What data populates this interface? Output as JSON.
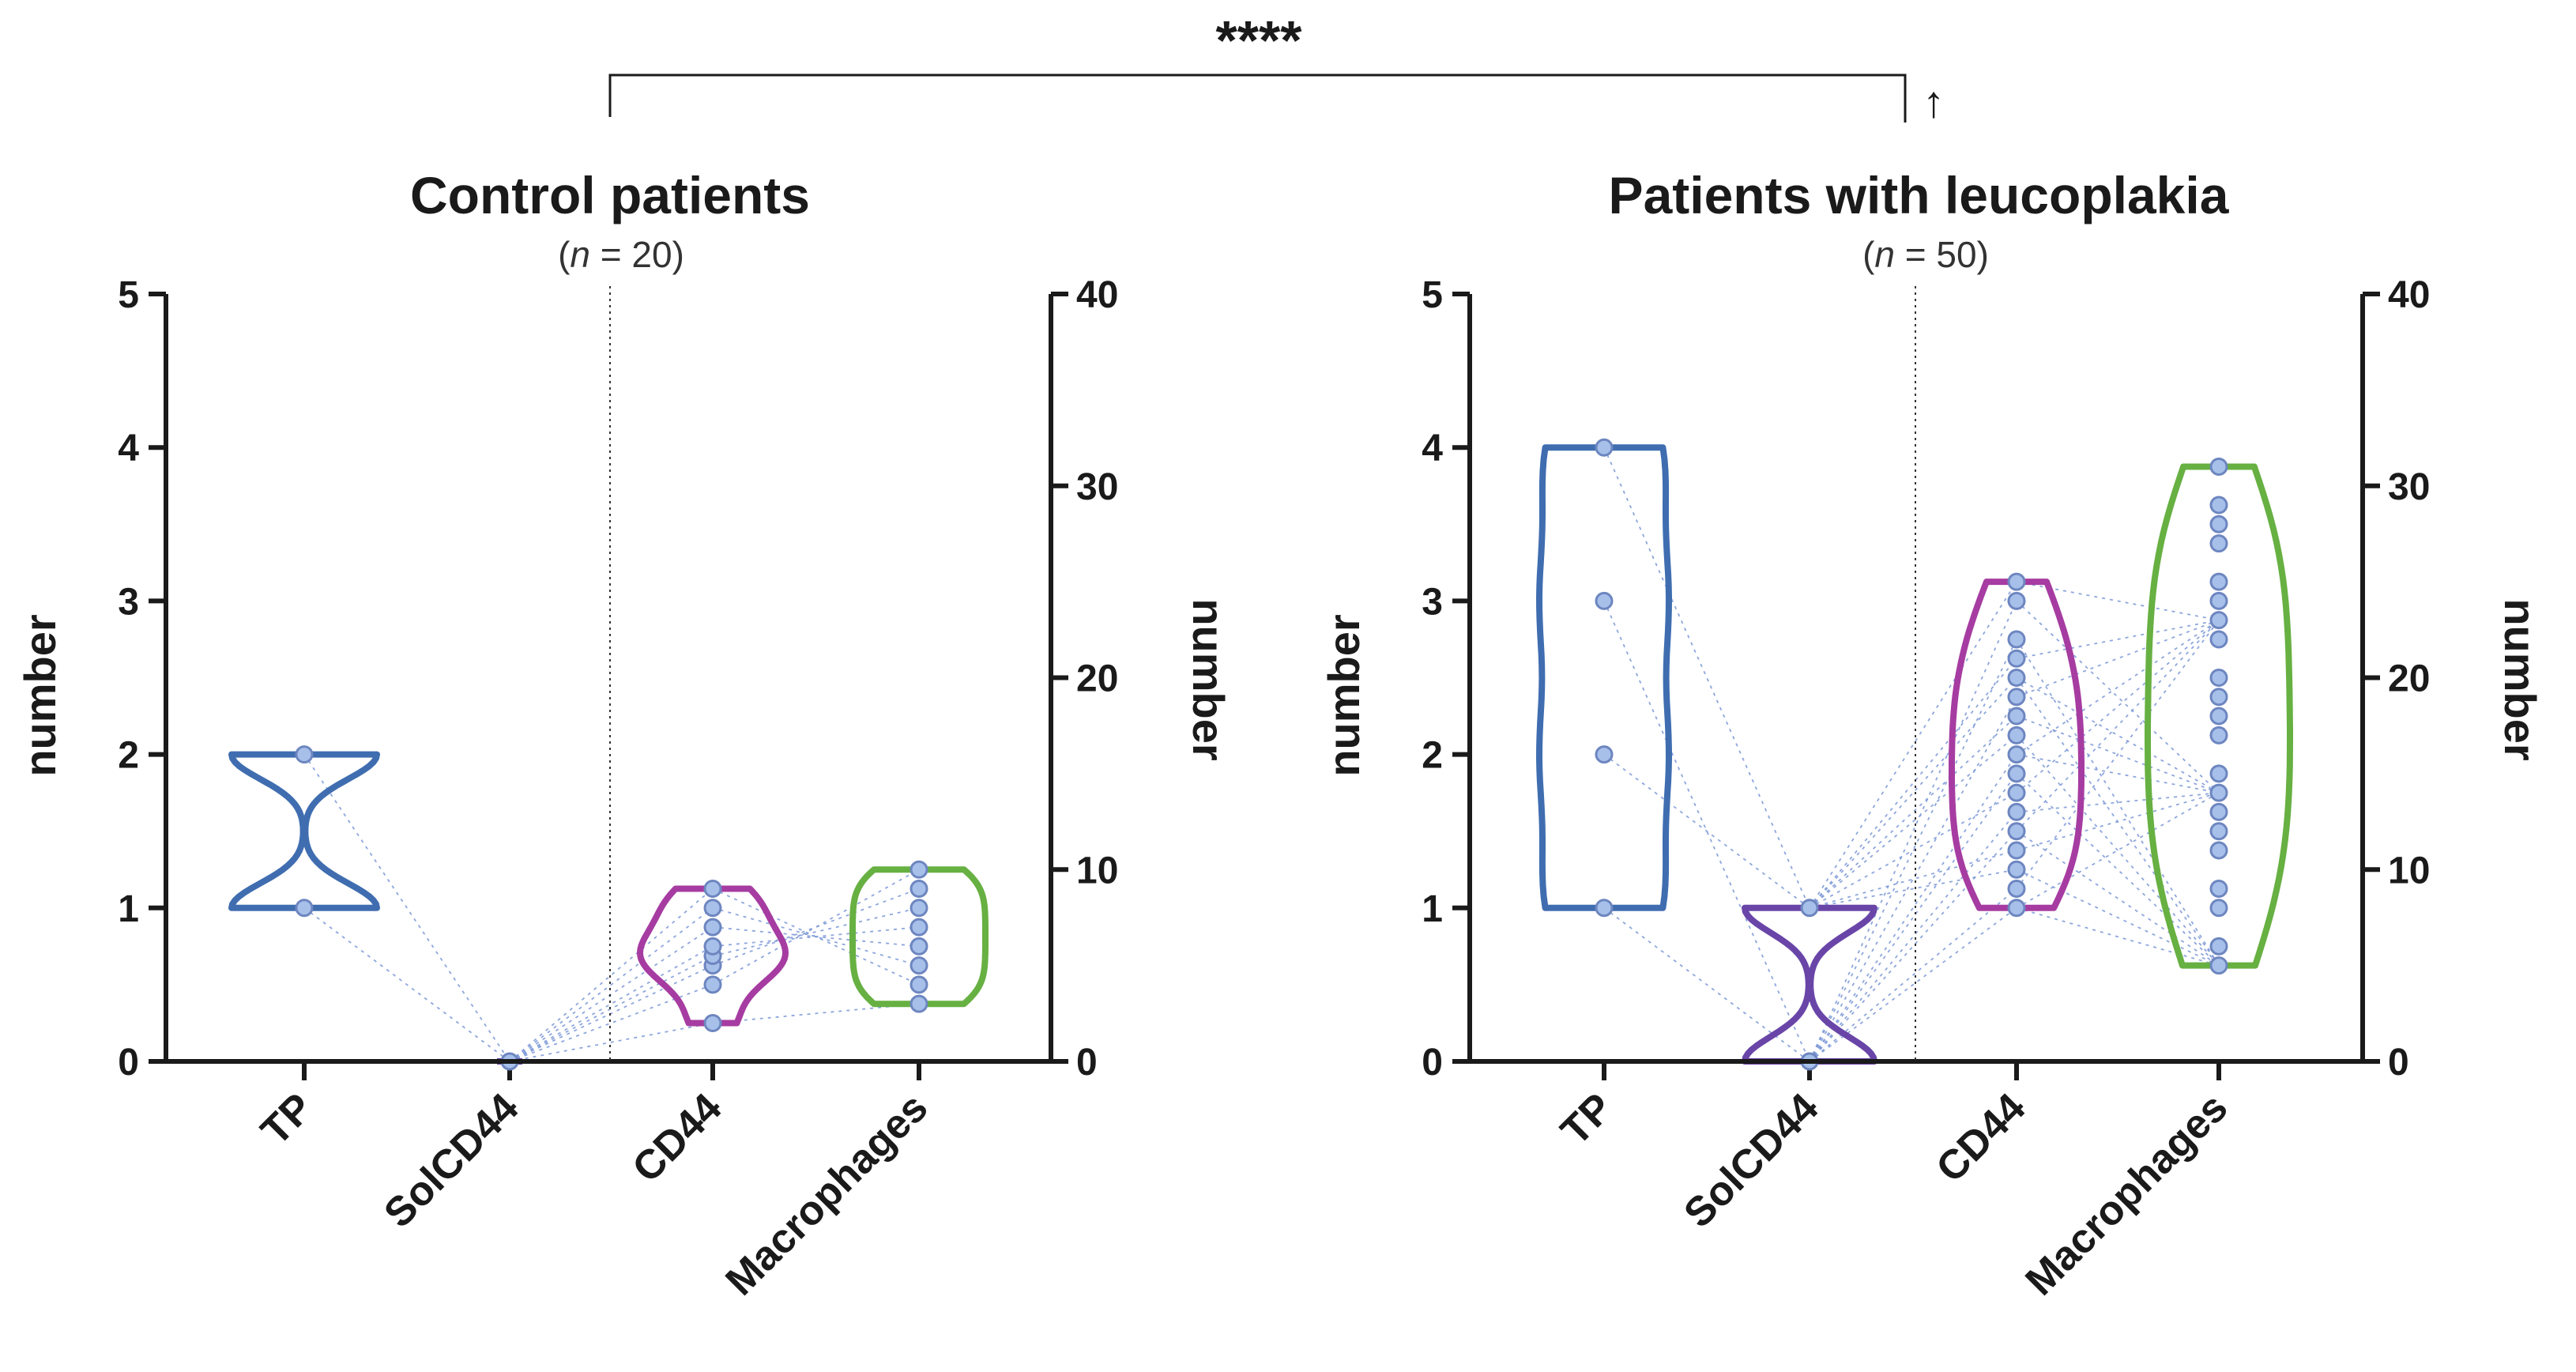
{
  "significance": {
    "stars": "****",
    "arrow": "↑"
  },
  "colors": {
    "TP": "#3f6db0",
    "SolCD44": "#6a45a8",
    "CD44": "#a63ca1",
    "Macrophages": "#67b042",
    "dot_fill": "#a7c0ea",
    "connector": "#7a96d6"
  },
  "chart_data": [
    {
      "type": "violin",
      "title": "Control patients",
      "subtitle_prefix": "(",
      "subtitle_n": "n",
      "subtitle_suffix": " = 20)",
      "categories": [
        "TP",
        "SolCD44",
        "CD44",
        "Macrophages"
      ],
      "left_axis": {
        "label": "number",
        "ylim": [
          0,
          5
        ],
        "ticks": [
          "0",
          "1",
          "2",
          "3",
          "4",
          "5"
        ],
        "applies_to": [
          "TP",
          "SolCD44"
        ]
      },
      "right_axis": {
        "label": "number",
        "ylim": [
          0,
          40
        ],
        "ticks": [
          "0",
          "10",
          "20",
          "30",
          "40"
        ],
        "applies_to": [
          "CD44",
          "Macrophages"
        ]
      },
      "series": [
        {
          "name": "TP",
          "axis": "left",
          "values": [
            1,
            2
          ],
          "min": 1,
          "max": 2
        },
        {
          "name": "SolCD44",
          "axis": "left",
          "values": [
            0
          ],
          "min": 0,
          "max": 0
        },
        {
          "name": "CD44",
          "axis": "right",
          "values": [
            2,
            4,
            5,
            5.5,
            6,
            7,
            8,
            9
          ],
          "min": 2,
          "max": 9
        },
        {
          "name": "Macrophages",
          "axis": "right",
          "values": [
            3,
            4,
            5,
            6,
            7,
            8,
            9,
            10
          ],
          "min": 3,
          "max": 10
        }
      ]
    },
    {
      "type": "violin",
      "title": "Patients with leucoplakia",
      "subtitle_prefix": "(",
      "subtitle_n": "n",
      "subtitle_suffix": " = 50)",
      "categories": [
        "TP",
        "SolCD44",
        "CD44",
        "Macrophages"
      ],
      "left_axis": {
        "label": "number",
        "ylim": [
          0,
          5
        ],
        "ticks": [
          "0",
          "1",
          "2",
          "3",
          "4",
          "5"
        ],
        "applies_to": [
          "TP",
          "SolCD44"
        ]
      },
      "right_axis": {
        "label": "number",
        "ylim": [
          0,
          40
        ],
        "ticks": [
          "0",
          "10",
          "20",
          "30",
          "40"
        ],
        "applies_to": [
          "CD44",
          "Macrophages"
        ]
      },
      "series": [
        {
          "name": "TP",
          "axis": "left",
          "values": [
            1,
            2,
            3,
            4
          ],
          "min": 1,
          "max": 4
        },
        {
          "name": "SolCD44",
          "axis": "left",
          "values": [
            0,
            1
          ],
          "min": 0,
          "max": 1
        },
        {
          "name": "CD44",
          "axis": "right",
          "values": [
            8,
            9,
            10,
            11,
            12,
            13,
            14,
            15,
            16,
            17,
            18,
            19,
            20,
            21,
            22,
            24,
            25
          ],
          "min": 8,
          "max": 25
        },
        {
          "name": "Macrophages",
          "axis": "right",
          "values": [
            5,
            6,
            8,
            9,
            11,
            12,
            13,
            14,
            15,
            17,
            18,
            19,
            20,
            22,
            23,
            24,
            25,
            27,
            28,
            29,
            31
          ],
          "min": 5,
          "max": 31
        }
      ]
    }
  ]
}
